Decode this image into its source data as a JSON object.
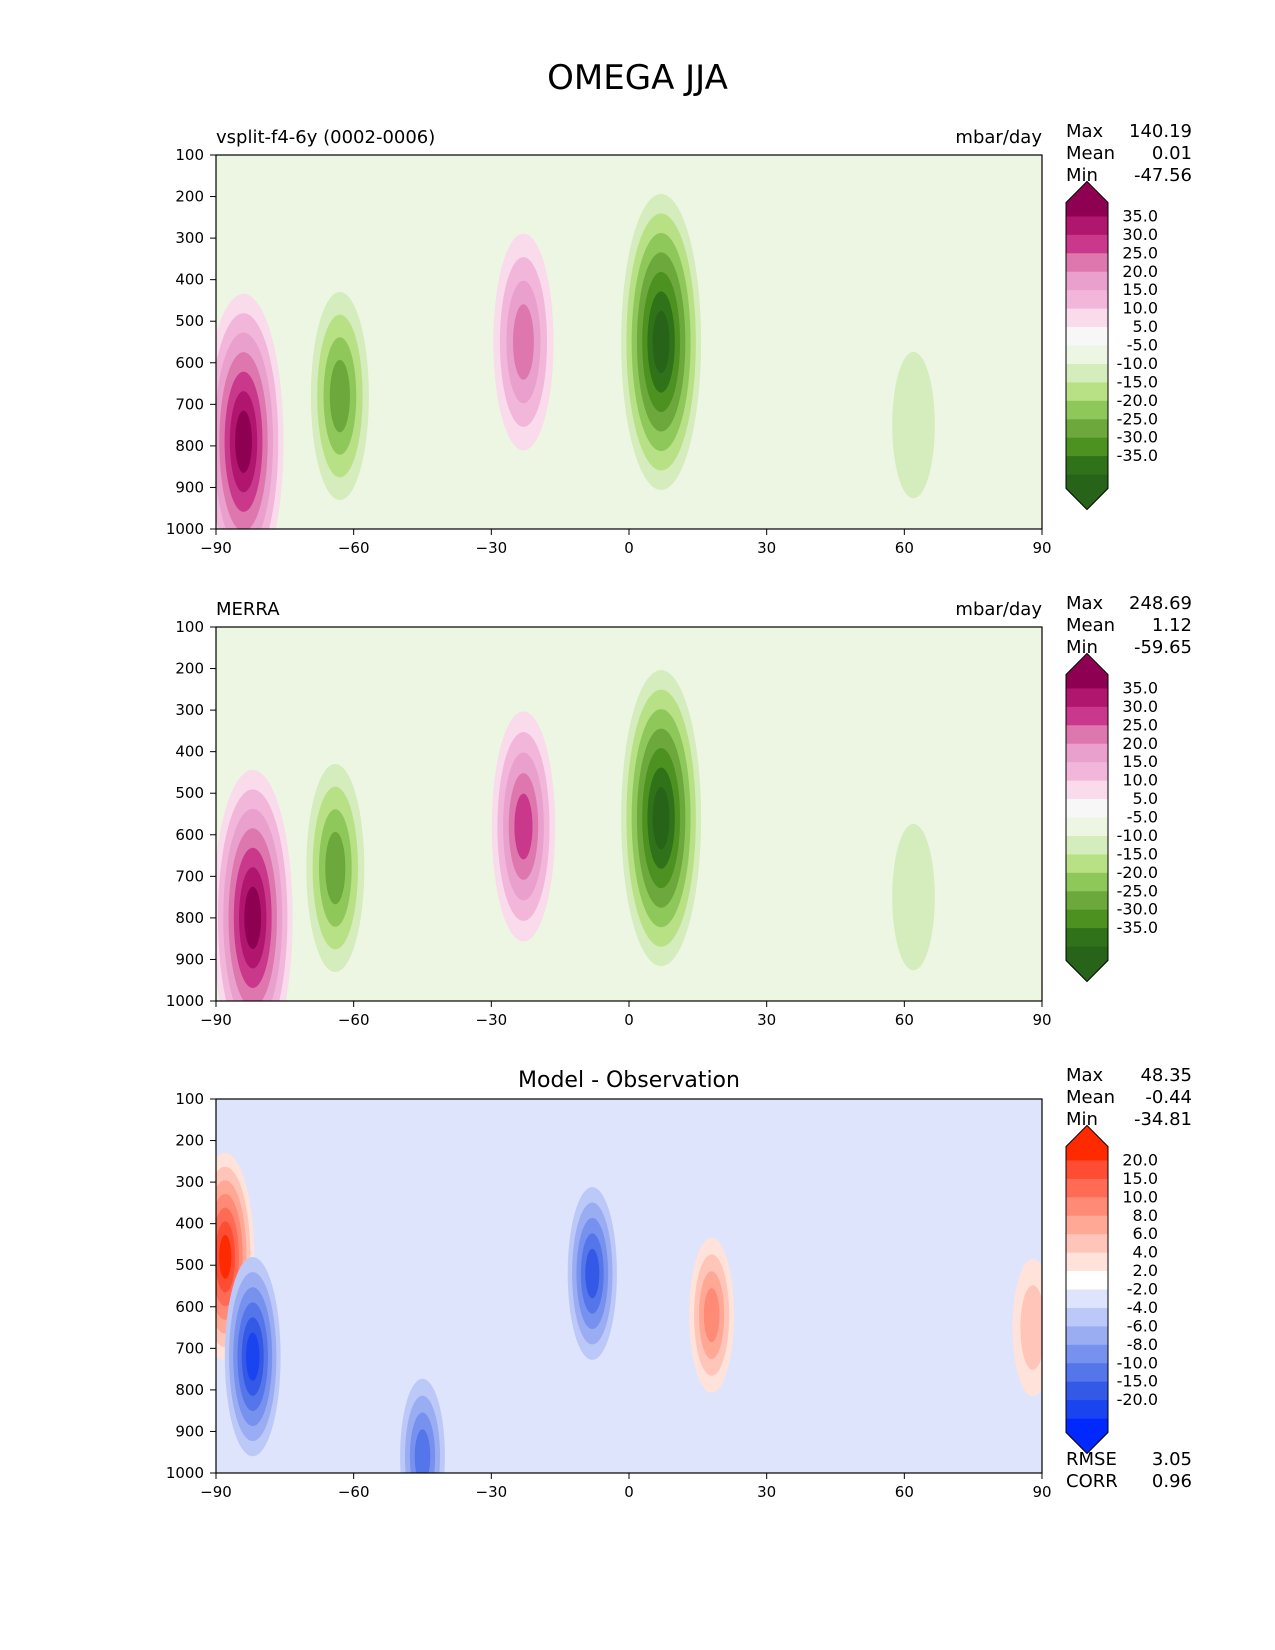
{
  "figure": {
    "title": "OMEGA JJA"
  },
  "chart_data": [
    {
      "type": "heatmap",
      "subtitle_left": "vsplit-f4-6y (0002-0006)",
      "subtitle_center": "",
      "units": "mbar/day",
      "xlim": [
        -90,
        90
      ],
      "ylim": [
        1000,
        100
      ],
      "x_ticks": [
        -90,
        -60,
        -30,
        0,
        30,
        60,
        90
      ],
      "y_ticks": [
        100,
        200,
        300,
        400,
        500,
        600,
        700,
        800,
        900,
        1000
      ],
      "stats": {
        "Max": "140.19",
        "Mean": "0.01",
        "Min": "-47.56"
      },
      "colorbar_levels": [
        "35.0",
        "30.0",
        "25.0",
        "20.0",
        "15.0",
        "10.0",
        "5.0",
        "-5.0",
        "-10.0",
        "-15.0",
        "-20.0",
        "-25.0",
        "-30.0",
        "-35.0"
      ],
      "colorbar_colors": [
        "#8e0152",
        "#b0166e",
        "#c9388b",
        "#de77ae",
        "#eaa0cc",
        "#f1b6da",
        "#f9dbec",
        "#f7f7f7",
        "#edf6e3",
        "#d5ecbc",
        "#b8e186",
        "#8fc85a",
        "#6da83c",
        "#4d9221",
        "#2f7219",
        "#276419"
      ],
      "features": [
        {
          "name": "polar-descent",
          "x": -84,
          "y": 790,
          "value": 45
        },
        {
          "name": "southern-midlat-ascent",
          "x": -63,
          "y": 680,
          "value": -20
        },
        {
          "name": "subtropical-descent",
          "x": -23,
          "y": 550,
          "value": 22
        },
        {
          "name": "itcz-ascent",
          "x": 7,
          "y": 550,
          "value": -40
        },
        {
          "name": "northern-midlat-ascent",
          "x": 62,
          "y": 750,
          "value": -6
        }
      ]
    },
    {
      "type": "heatmap",
      "subtitle_left": "MERRA",
      "subtitle_center": "",
      "units": "mbar/day",
      "xlim": [
        -90,
        90
      ],
      "ylim": [
        1000,
        100
      ],
      "x_ticks": [
        -90,
        -60,
        -30,
        0,
        30,
        60,
        90
      ],
      "y_ticks": [
        100,
        200,
        300,
        400,
        500,
        600,
        700,
        800,
        900,
        1000
      ],
      "stats": {
        "Max": "248.69",
        "Mean": "1.12",
        "Min": "-59.65"
      },
      "colorbar_levels": [
        "35.0",
        "30.0",
        "25.0",
        "20.0",
        "15.0",
        "10.0",
        "5.0",
        "-5.0",
        "-10.0",
        "-15.0",
        "-20.0",
        "-25.0",
        "-30.0",
        "-35.0"
      ],
      "colorbar_colors": [
        "#8e0152",
        "#b0166e",
        "#c9388b",
        "#de77ae",
        "#eaa0cc",
        "#f1b6da",
        "#f9dbec",
        "#f7f7f7",
        "#edf6e3",
        "#d5ecbc",
        "#b8e186",
        "#8fc85a",
        "#6da83c",
        "#4d9221",
        "#2f7219",
        "#276419"
      ],
      "features": [
        {
          "name": "polar-descent",
          "x": -82,
          "y": 800,
          "value": 50
        },
        {
          "name": "southern-midlat-ascent",
          "x": -64,
          "y": 680,
          "value": -20
        },
        {
          "name": "subtropical-descent",
          "x": -23,
          "y": 580,
          "value": 25
        },
        {
          "name": "itcz-ascent",
          "x": 7,
          "y": 560,
          "value": -45
        },
        {
          "name": "northern-midlat-ascent",
          "x": 62,
          "y": 750,
          "value": -6
        }
      ]
    },
    {
      "type": "heatmap",
      "subtitle_left": "",
      "subtitle_center": "Model - Observation",
      "units": "",
      "xlim": [
        -90,
        90
      ],
      "ylim": [
        1000,
        100
      ],
      "x_ticks": [
        -90,
        -60,
        -30,
        0,
        30,
        60,
        90
      ],
      "y_ticks": [
        100,
        200,
        300,
        400,
        500,
        600,
        700,
        800,
        900,
        1000
      ],
      "stats": {
        "Max": "48.35",
        "Mean": "-0.44",
        "Min": "-34.81"
      },
      "metrics": {
        "RMSE": "3.05",
        "CORR": "0.96"
      },
      "colorbar_levels": [
        "20.0",
        "15.0",
        "10.0",
        "8.0",
        "6.0",
        "4.0",
        "2.0",
        "-2.0",
        "-4.0",
        "-6.0",
        "-8.0",
        "-10.0",
        "-15.0",
        "-20.0"
      ],
      "colorbar_colors": [
        "#ff2a00",
        "#ff4d33",
        "#ff6b55",
        "#ff8a75",
        "#ffa896",
        "#ffc5b8",
        "#ffe3da",
        "#ffffff",
        "#dde4fb",
        "#bcc8f7",
        "#9aadf2",
        "#7791ee",
        "#5575ea",
        "#3359e6",
        "#1a44f0",
        "#0028ff"
      ],
      "features": [
        {
          "name": "southern-edge-positive",
          "x": -88,
          "y": 480,
          "value": 20
        },
        {
          "name": "polar-negative",
          "x": -82,
          "y": 720,
          "value": -18
        },
        {
          "name": "southern-surface-negative",
          "x": -45,
          "y": 960,
          "value": -8
        },
        {
          "name": "equatorial-negative",
          "x": -8,
          "y": 520,
          "value": -12
        },
        {
          "name": "tropical-positive",
          "x": 18,
          "y": 620,
          "value": 8
        },
        {
          "name": "northern-edge-positive",
          "x": 88,
          "y": 650,
          "value": 4
        }
      ]
    }
  ]
}
